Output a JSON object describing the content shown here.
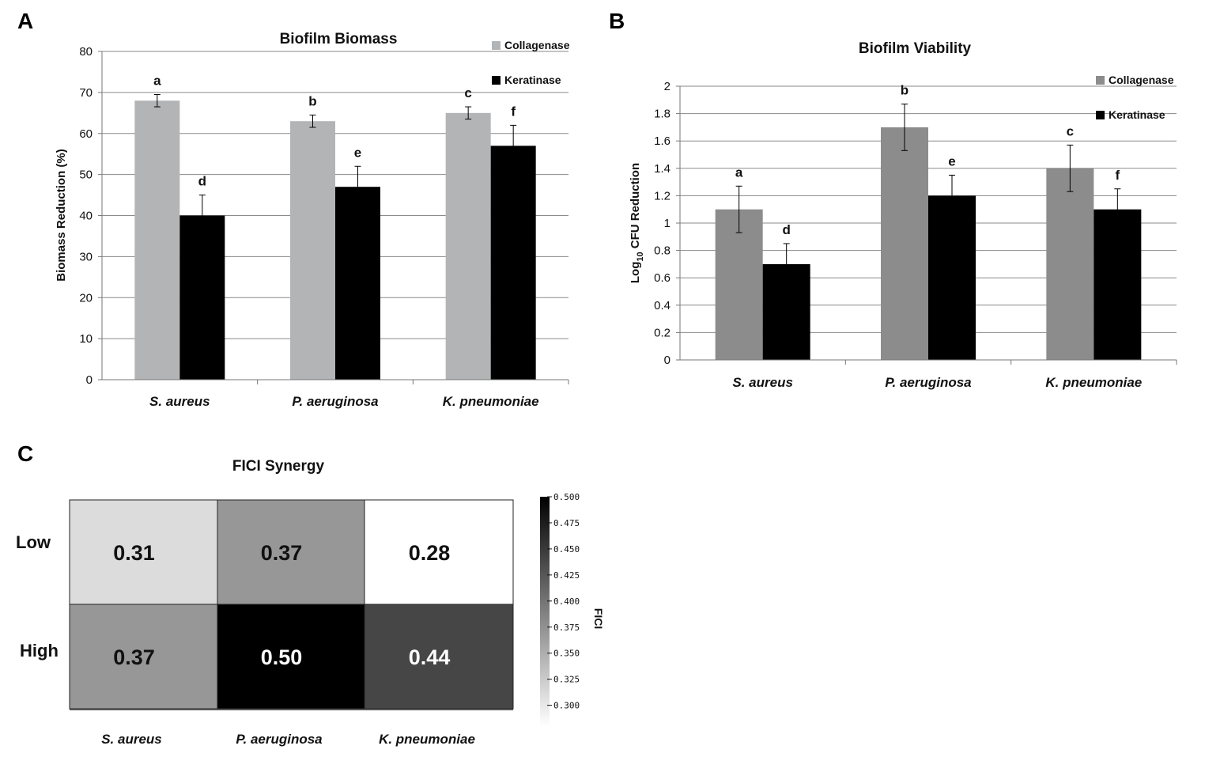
{
  "panels": {
    "a": "A",
    "b": "B",
    "c": "C"
  },
  "chart_data": [
    {
      "id": "biomass",
      "type": "bar",
      "title": "Biofilm Biomass",
      "ylabel": "Biomass Reduction (%)",
      "xlabel": "",
      "ylim": [
        0,
        80
      ],
      "yticks": [
        "0",
        "10",
        "20",
        "30",
        "40",
        "50",
        "60",
        "70",
        "80"
      ],
      "yticks_values": [
        0,
        10,
        20,
        30,
        40,
        50,
        60,
        70,
        80
      ],
      "categories": [
        "S. aureus",
        "P. aeruginosa",
        "K. pneumoniae"
      ],
      "grid": true,
      "legend_position": "top-right",
      "series": [
        {
          "name": "Collagenase",
          "color": "#b2b4b6",
          "values": [
            68,
            63,
            65
          ],
          "errors": [
            1.5,
            1.5,
            1.5
          ],
          "letters": [
            "a",
            "b",
            "c"
          ]
        },
        {
          "name": "Keratinase",
          "color": "#000000",
          "values": [
            40,
            47,
            57
          ],
          "errors": [
            5,
            5,
            5
          ],
          "letters": [
            "d",
            "e",
            "f"
          ]
        }
      ]
    },
    {
      "id": "viability",
      "type": "bar",
      "title": "Biofilm Viability",
      "ylabel_main": "Log",
      "ylabel_sub": "10",
      "ylabel_rest": " CFU Reduction",
      "xlabel": "",
      "ylim": [
        0,
        2
      ],
      "yticks": [
        "0",
        "0.2",
        "0.4",
        "0.6",
        "0.8",
        "1",
        "1.2",
        "1.4",
        "1.6",
        "1.8",
        "2"
      ],
      "yticks_values": [
        0,
        0.2,
        0.4,
        0.6,
        0.8,
        1,
        1.2,
        1.4,
        1.6,
        1.8,
        2
      ],
      "categories": [
        "S. aureus",
        "P. aeruginosa",
        "K. pneumoniae"
      ],
      "grid": true,
      "legend_position": "top-right",
      "series": [
        {
          "name": "Collagenase",
          "color": "#8c8c8c",
          "values": [
            1.1,
            1.7,
            1.4
          ],
          "errors": [
            0.17,
            0.17,
            0.17
          ],
          "letters": [
            "a",
            "b",
            "c"
          ]
        },
        {
          "name": "Keratinase",
          "color": "#000000",
          "values": [
            0.7,
            1.2,
            1.1
          ],
          "errors": [
            0.15,
            0.15,
            0.15
          ],
          "letters": [
            "d",
            "e",
            "f"
          ]
        }
      ]
    },
    {
      "id": "fici",
      "type": "heatmap",
      "title": "FICI Synergy",
      "columns": [
        "S. aureus",
        "P. aeruginosa",
        "K. pneumoniae"
      ],
      "rows": [
        "Low",
        "High"
      ],
      "values": [
        [
          0.31,
          0.37,
          0.28
        ],
        [
          0.37,
          0.5,
          0.44
        ]
      ],
      "labels": [
        [
          "0.31",
          "0.37",
          "0.28"
        ],
        [
          "0.37",
          "0.50",
          "0.44"
        ]
      ],
      "colorbar_label": "FICI",
      "colorbar_range": [
        0.28,
        0.5
      ],
      "colorbar_ticks": [
        "0.500",
        "0.475",
        "0.450",
        "0.425",
        "0.400",
        "0.375",
        "0.350",
        "0.325",
        "0.300"
      ],
      "colorbar_tick_values": [
        0.5,
        0.475,
        0.45,
        0.425,
        0.4,
        0.375,
        0.35,
        0.325,
        0.3
      ]
    }
  ]
}
